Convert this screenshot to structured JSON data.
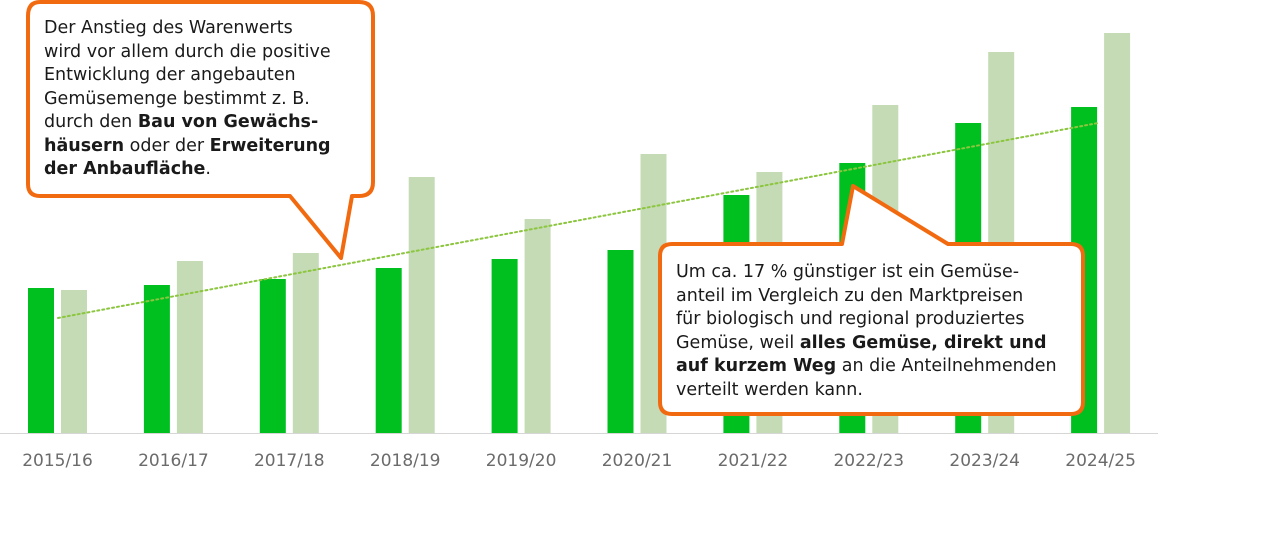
{
  "chart_data": {
    "type": "bar",
    "title": "",
    "xlabel": "",
    "ylabel": "",
    "categories": [
      "2015/16",
      "2016/17",
      "2017/18",
      "2018/19",
      "2019/20",
      "2020/21",
      "2021/22",
      "2022/23",
      "2023/24",
      "2024/25"
    ],
    "series": [
      {
        "values": [
          145,
          148,
          154,
          165,
          174,
          183,
          238,
          270,
          310,
          326
        ],
        "color": "#00c020"
      },
      {
        "values": [
          143,
          172,
          180,
          256,
          214,
          279,
          261,
          328,
          381,
          400
        ],
        "color": "#c5dbb5"
      }
    ],
    "trendline": {
      "from": 115,
      "to": 310,
      "color": "#8cc63f",
      "style": "dotted"
    },
    "ylim": [
      0,
      420
    ],
    "grid": false,
    "legend": "none"
  },
  "annotations": [
    {
      "segments": [
        {
          "text": "Der Anstieg des Warenwerts"
        },
        {
          "text": "wird vor allem durch die positive"
        },
        {
          "text": "Entwicklung der angebauten"
        },
        {
          "text": "Gemüsemenge bestimmt z. B."
        },
        {
          "text": "durch den "
        },
        {
          "text": "Bau von Gewächs-"
        },
        {
          "text": "häusern"
        },
        {
          "text": " oder der "
        },
        {
          "text": "Erweiterung"
        },
        {
          "text": "der Anbaufläche"
        },
        {
          "text": "."
        }
      ]
    },
    {
      "segments": [
        {
          "text": "Um ca. 17 % günstiger ist ein Gemüse-"
        },
        {
          "text": "anteil im Vergleich zu den Marktpreisen"
        },
        {
          "text": "für biologisch und regional produziertes"
        },
        {
          "text": "Gemüse, weil "
        },
        {
          "text": "alles Gemüse, direkt und"
        },
        {
          "text": "auf kurzem Weg"
        },
        {
          "text": " an die Anteilnehmenden"
        },
        {
          "text": "verteilt werden kann."
        }
      ]
    }
  ],
  "colors": {
    "callout_border": "#f26a10",
    "axis_text": "#6b6b6b",
    "axis_line": "#d6d6d6"
  }
}
